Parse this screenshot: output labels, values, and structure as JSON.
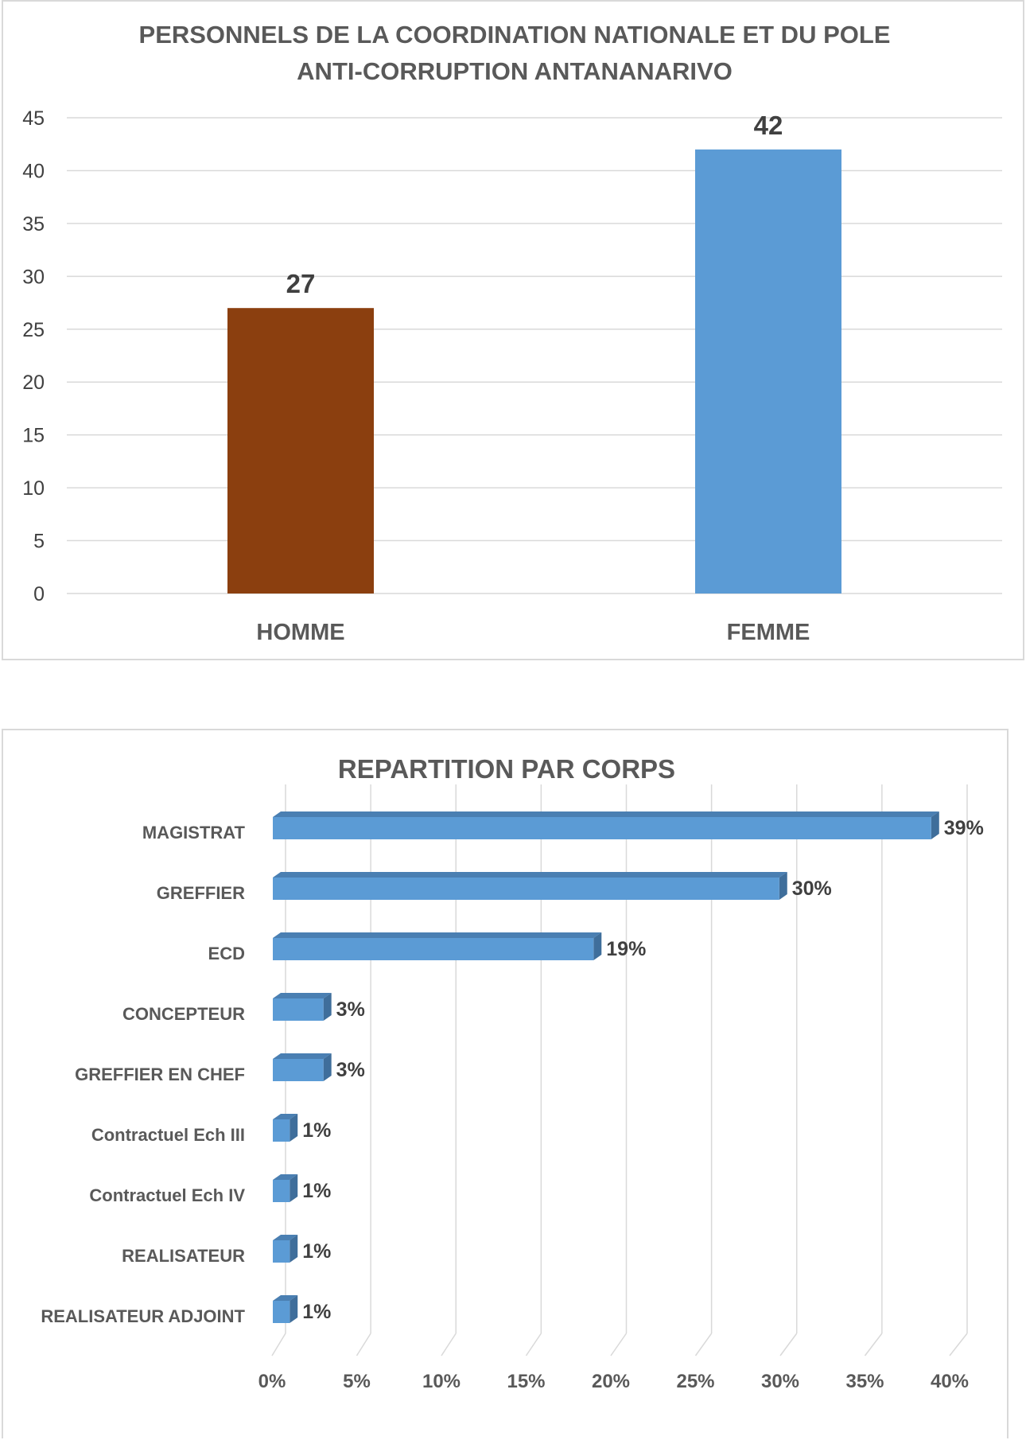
{
  "chart_data": [
    {
      "type": "bar",
      "title_lines": [
        "PERSONNELS DE LA COORDINATION NATIONALE ET DU POLE",
        "ANTI-CORRUPTION ANTANANARIVO"
      ],
      "categories": [
        "HOMME",
        "FEMME"
      ],
      "values": [
        27,
        42
      ],
      "colors": [
        "#8B3F0F",
        "#5B9BD5"
      ],
      "ylim": [
        0,
        45
      ],
      "yticks": [
        0,
        5,
        10,
        15,
        20,
        25,
        30,
        35,
        40,
        45
      ],
      "grid": true,
      "legend": "none"
    },
    {
      "type": "bar",
      "orientation": "horizontal",
      "style": "3d",
      "title": "REPARTITION PAR CORPS",
      "categories": [
        "MAGISTRAT",
        "GREFFIER",
        "ECD",
        "CONCEPTEUR",
        "GREFFIER EN CHEF",
        "Contractuel Ech III",
        "Contractuel Ech IV",
        "REALISATEUR",
        "REALISATEUR ADJOINT"
      ],
      "values": [
        39,
        30,
        19,
        3,
        3,
        1,
        1,
        1,
        1
      ],
      "value_labels": [
        "39%",
        "30%",
        "19%",
        "3%",
        "3%",
        "1%",
        "1%",
        "1%",
        "1%"
      ],
      "color": "#5B9BD5",
      "xlim": [
        0,
        40
      ],
      "xticks": [
        "0%",
        "5%",
        "10%",
        "15%",
        "20%",
        "25%",
        "30%",
        "35%",
        "40%"
      ],
      "grid": true,
      "legend": "none"
    }
  ]
}
